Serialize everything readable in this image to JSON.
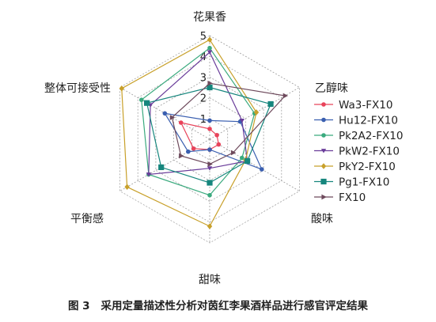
{
  "chart_data": {
    "type": "radar",
    "axes": [
      "花果香",
      "乙醇味",
      "酸味",
      "甜味",
      "平衡感",
      "整体可接受性"
    ],
    "range": [
      0,
      5
    ],
    "ticks": [
      "1",
      "2",
      "3",
      "4",
      "5"
    ],
    "tick_values": [
      1,
      2,
      3,
      4,
      5
    ],
    "grid": "dashed",
    "legend_position": "right",
    "series": [
      {
        "name": "Wa3-FX10",
        "color": "#e8435a",
        "marker": "circle",
        "values": [
          0.5,
          0.4,
          0.5,
          0.5,
          0.9,
          1.6
        ]
      },
      {
        "name": "Hu12-FX10",
        "color": "#3a5fb0",
        "marker": "circle",
        "values": [
          0.9,
          1.7,
          2.9,
          0.5,
          1.2,
          2.5
        ]
      },
      {
        "name": "Pk2A2-FX10",
        "color": "#3aaa7e",
        "marker": "circle",
        "values": [
          4.4,
          2.5,
          1.8,
          2.7,
          3.4,
          3.8
        ]
      },
      {
        "name": "PkW2-FX10",
        "color": "#6a3d9a",
        "marker": "triangle",
        "values": [
          4.2,
          1.8,
          2.1,
          1.4,
          3.4,
          3.3
        ]
      },
      {
        "name": "PkY2-FX10",
        "color": "#c8a02a",
        "marker": "diamond",
        "values": [
          4.8,
          2.6,
          2.0,
          4.2,
          4.6,
          4.9
        ]
      },
      {
        "name": "Pg1-FX10",
        "color": "#16867d",
        "marker": "square",
        "values": [
          2.5,
          3.4,
          2.1,
          2.1,
          2.7,
          3.5
        ]
      },
      {
        "name": "FX10",
        "color": "#6e4a5c",
        "marker": "arrow",
        "values": [
          2.7,
          4.2,
          1.3,
          1.2,
          1.6,
          2.1
        ]
      }
    ]
  },
  "caption": {
    "figure_number": "图 3",
    "text": "采用定量描述性分析对茵红李果酒样品进行感官评定结果"
  }
}
